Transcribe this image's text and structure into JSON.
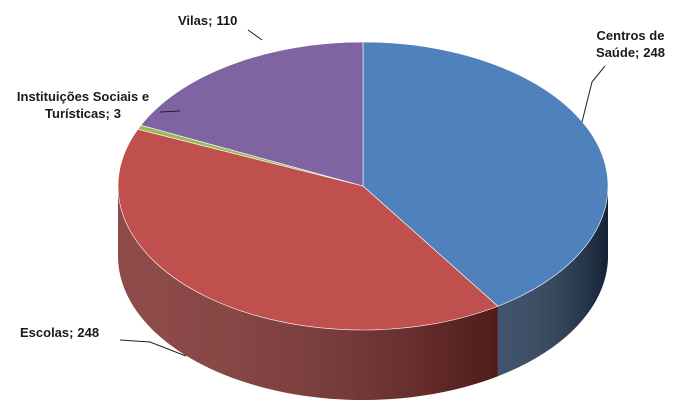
{
  "chart_data": {
    "type": "pie3d",
    "categories": [
      "Centros de Saúde;",
      "Escolas;",
      "Instituições Sociais e Turísticas;",
      "Vilas;"
    ],
    "values": [
      248,
      248,
      3,
      110
    ],
    "colors": [
      "#4f81bd",
      "#c0504d",
      "#9bbb59",
      "#8064a2"
    ],
    "side_colors": [
      "#1f3552",
      "#7a2a28",
      "#4f6a2a",
      "#463463"
    ]
  }
}
